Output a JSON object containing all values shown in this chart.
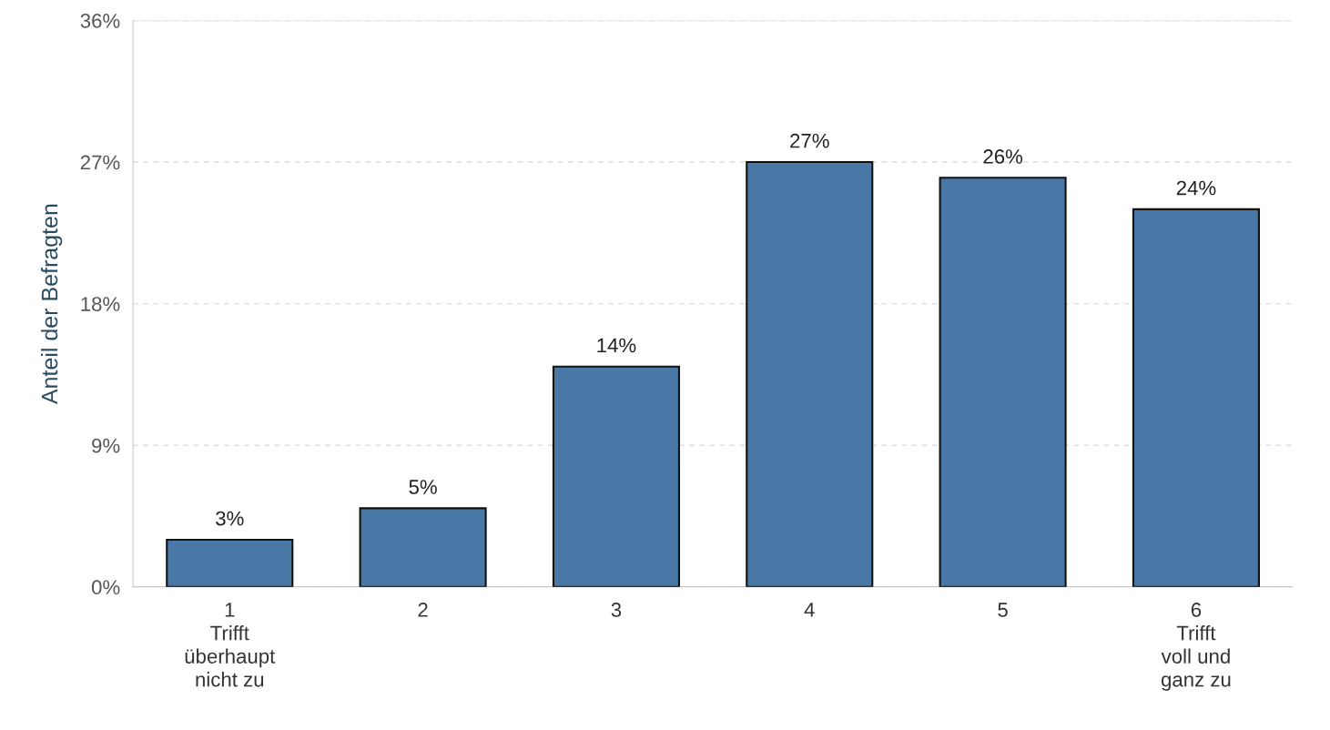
{
  "chart_data": {
    "type": "bar",
    "ylabel": "Anteil der Befragten",
    "categories": [
      "1\nTrifft\nüberhaupt\nnicht zu",
      "2",
      "3",
      "4",
      "5",
      "6\nTrifft\nvoll und\nganz zu"
    ],
    "values": [
      3,
      5,
      14,
      27,
      26,
      24
    ],
    "value_labels": [
      "3%",
      "5%",
      "14%",
      "27%",
      "26%",
      "24%"
    ],
    "color": "#4a78a6",
    "ylim": [
      0,
      36
    ],
    "yticks": [
      {
        "value": 0,
        "label": "0%"
      },
      {
        "value": 9,
        "label": "9%"
      },
      {
        "value": 18,
        "label": "18%"
      },
      {
        "value": 27,
        "label": "27%"
      },
      {
        "value": 36,
        "label": "36%"
      }
    ],
    "grid": "y"
  }
}
